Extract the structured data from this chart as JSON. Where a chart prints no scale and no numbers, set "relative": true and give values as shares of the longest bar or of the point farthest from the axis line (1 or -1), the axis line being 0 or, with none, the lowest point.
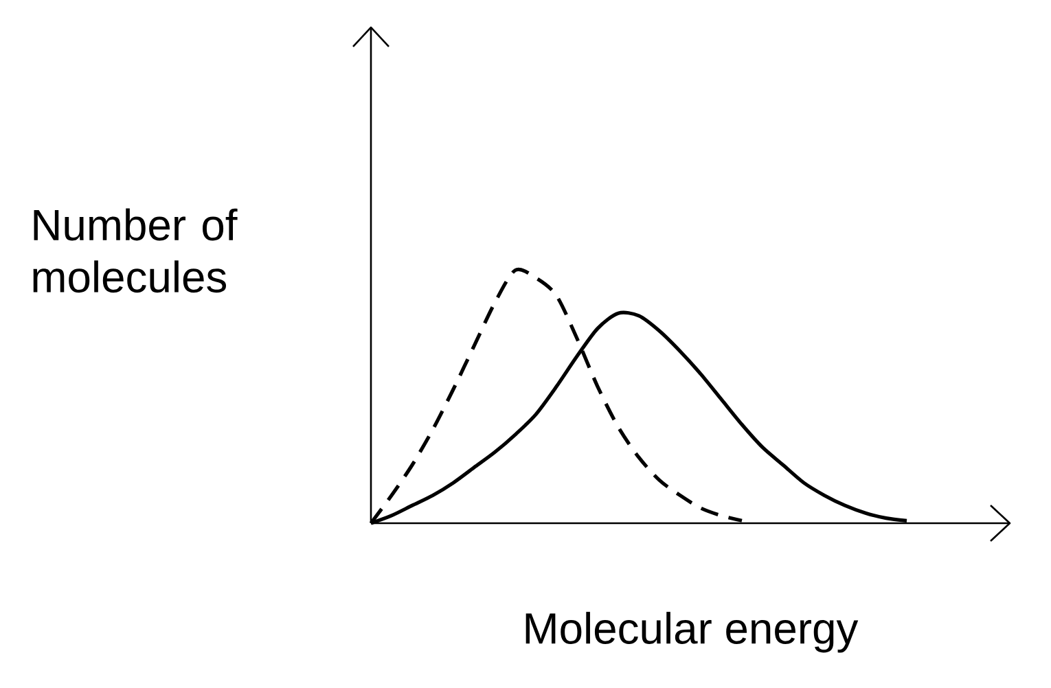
{
  "chart_data": {
    "type": "line",
    "relative": true,
    "xlabel": "Molecular energy",
    "ylabel": "Number of molecules",
    "categories": [
      null,
      null,
      null,
      null,
      null,
      null,
      null,
      null,
      null,
      null,
      null,
      null,
      null,
      null,
      null,
      null,
      null,
      null,
      null,
      null,
      null,
      null,
      null,
      null,
      null,
      null,
      null,
      null,
      null,
      null,
      null,
      null
    ],
    "series": [
      {
        "color": "#000000",
        "line_style": "solid",
        "values": [
          0,
          0.03,
          0.07,
          0.11,
          0.16,
          0.22,
          0.28,
          0.35,
          0.43,
          0.54,
          0.66,
          0.77,
          0.83,
          0.82,
          0.76,
          0.68,
          0.59,
          0.49,
          0.39,
          0.3,
          0.23,
          0.16,
          0.11,
          0.07,
          0.04,
          0.02,
          0.01,
          null,
          null,
          null,
          null,
          null
        ]
      },
      {
        "color": "#000000",
        "line_style": "dashed",
        "values": [
          0,
          0.11,
          0.23,
          0.37,
          0.53,
          0.7,
          0.87,
          1,
          0.97,
          0.9,
          0.73,
          0.54,
          0.38,
          0.26,
          0.17,
          0.11,
          0.06,
          0.03,
          0.01,
          null,
          null,
          null,
          null,
          null,
          null,
          null,
          null,
          null,
          null,
          null,
          null,
          null
        ]
      }
    ]
  }
}
